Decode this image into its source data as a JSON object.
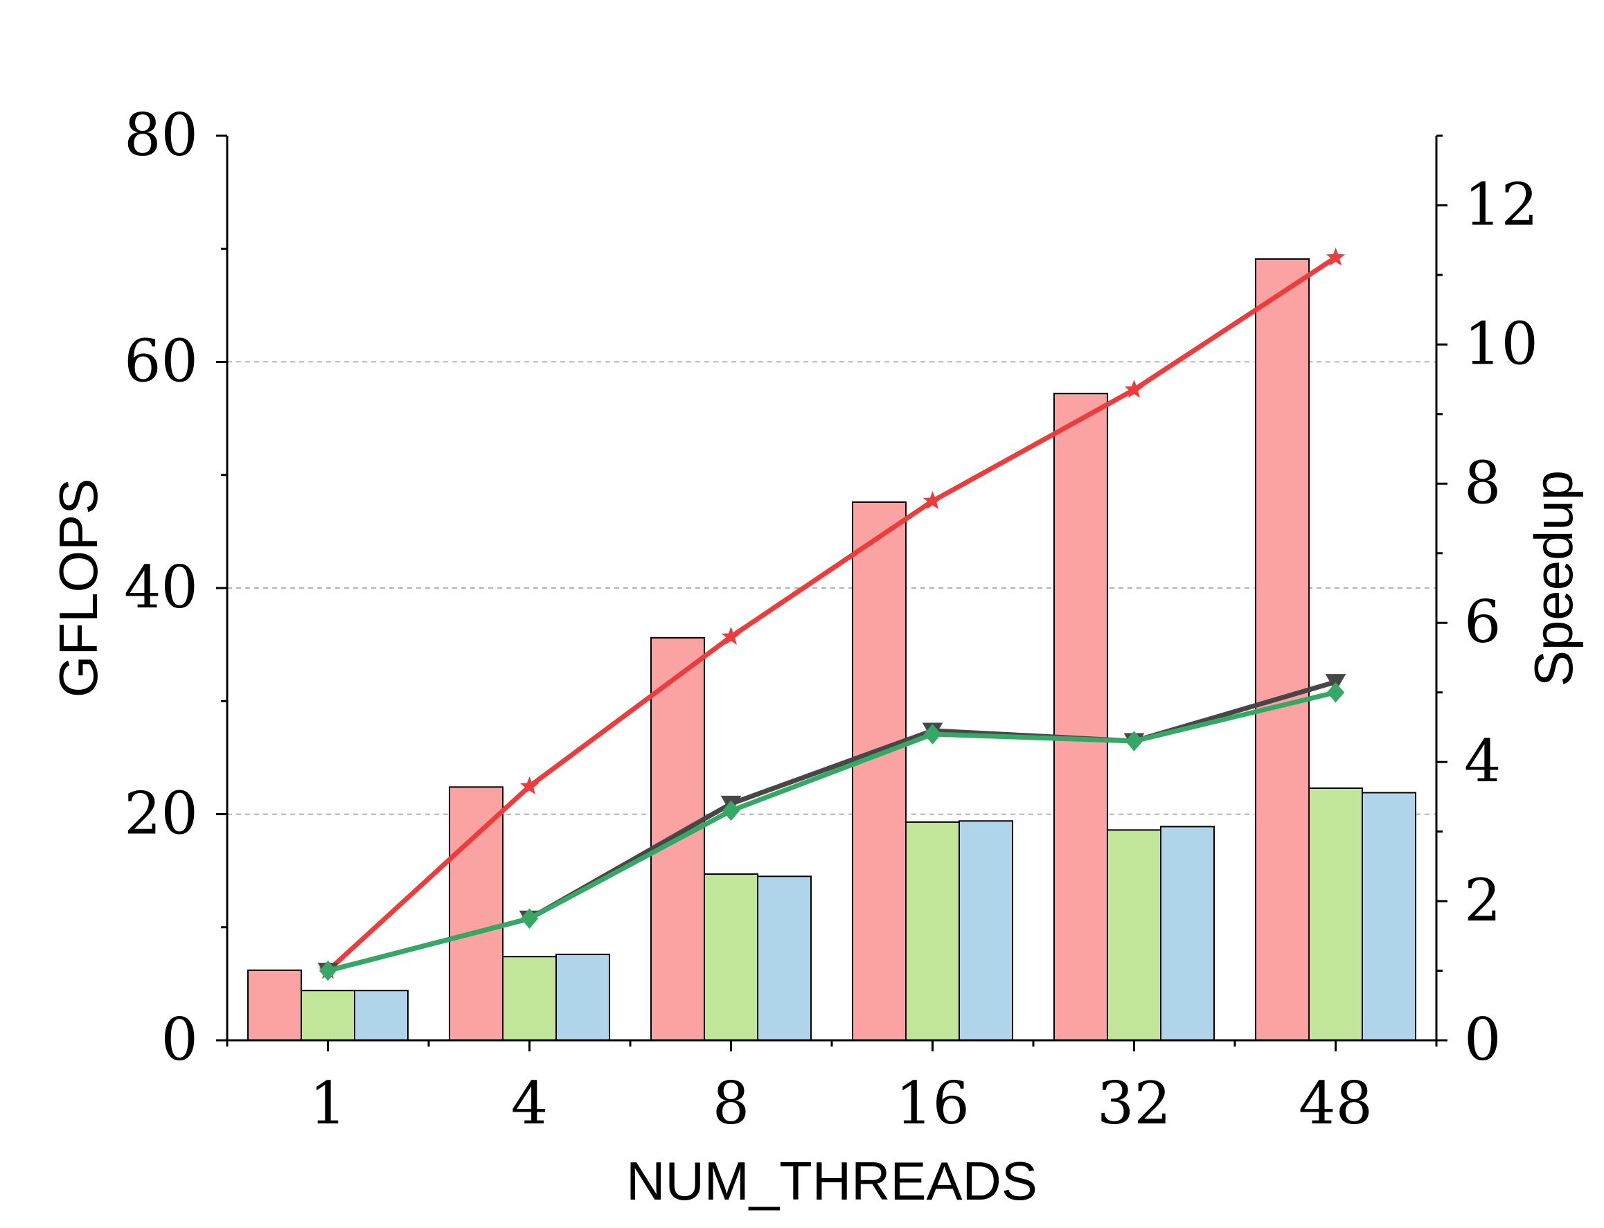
{
  "chart_data": {
    "type": "bar",
    "categories": [
      "1",
      "4",
      "8",
      "16",
      "32",
      "48"
    ],
    "xlabel": "NUM_THREADS",
    "ylabel": "GFLOPS",
    "y2label": "Speedup",
    "ylim": [
      0,
      80
    ],
    "y2lim": [
      0,
      13
    ],
    "yticks": [
      0,
      20,
      40,
      60,
      80
    ],
    "y2ticks": [
      0,
      2,
      4,
      6,
      8,
      10,
      12
    ],
    "grid": "horizontal dashed at 20, 40, 60",
    "legend": "none",
    "bar_series": [
      {
        "color": "#fba3a3",
        "values": [
          6.2,
          22.4,
          35.6,
          47.6,
          57.2,
          69.1
        ]
      },
      {
        "color": "#c1e69a",
        "values": [
          4.4,
          7.4,
          14.7,
          19.3,
          18.6,
          22.3
        ]
      },
      {
        "color": "#b0d4ea",
        "values": [
          4.4,
          7.6,
          14.5,
          19.4,
          18.9,
          21.9
        ]
      }
    ],
    "line_series": [
      {
        "color": "#ee3b3b",
        "marker": "star",
        "values": [
          1.0,
          3.65,
          5.8,
          7.75,
          9.35,
          11.25
        ]
      },
      {
        "color": "#474747",
        "marker": "triangle-down",
        "values": [
          1.0,
          1.75,
          3.4,
          4.45,
          4.3,
          5.15
        ]
      },
      {
        "color": "#36a865",
        "marker": "diamond",
        "values": [
          1.0,
          1.75,
          3.3,
          4.4,
          4.3,
          5.0
        ]
      }
    ]
  }
}
